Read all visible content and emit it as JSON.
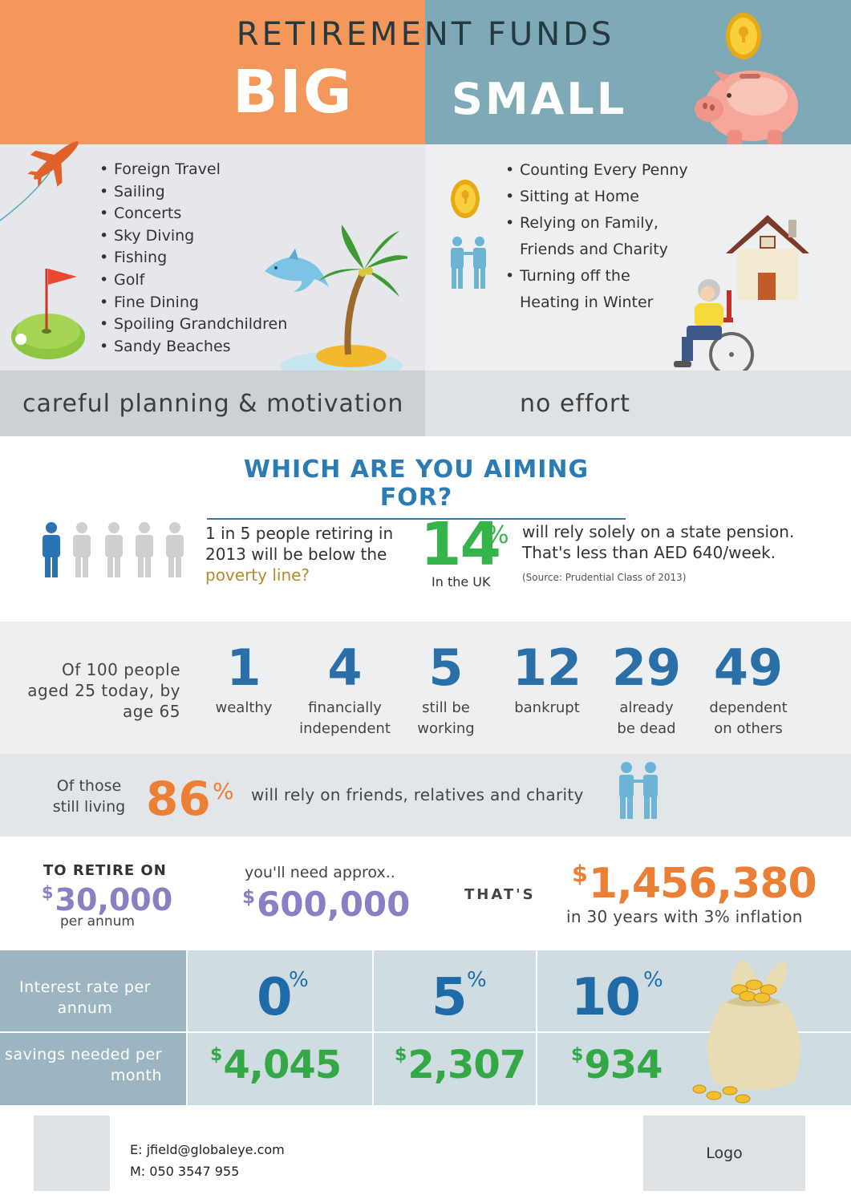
{
  "header": {
    "title": "RETIREMENT FUNDS",
    "big": "BIG",
    "small": "SMALL"
  },
  "big_list": [
    "Foreign Travel",
    "Sailing",
    "Concerts",
    "Sky Diving",
    "Fishing",
    "Golf",
    "Fine Dining",
    "Spoiling Grandchildren",
    "Sandy Beaches"
  ],
  "small_list": [
    "Counting Every Penny",
    "Sitting at Home",
    "Relying on Family,",
    "Friends and Charity",
    "Turning off the",
    "Heating in Winter"
  ],
  "bands": {
    "big": "careful planning & motivation",
    "small": "no effort"
  },
  "aiming": {
    "title": "WHICH ARE YOU AIMING FOR?",
    "poverty_pre": "1 in 5 people retiring in 2013 will be below the ",
    "poverty_highlight": "poverty line?",
    "pct": "14",
    "pct_sign": "%",
    "region": "In the UK",
    "pension": "will rely solely on a state pension. That's less than AED 640/week.",
    "source": "(Source: Prudential Class of 2013)"
  },
  "stats": {
    "intro": "Of 100 people aged 25 today, by age 65",
    "items": [
      {
        "num": "1",
        "label": "wealthy"
      },
      {
        "num": "4",
        "label": "financially\nindependent"
      },
      {
        "num": "5",
        "label": "still be\nworking"
      },
      {
        "num": "12",
        "label": "bankrupt"
      },
      {
        "num": "29",
        "label": "already\nbe dead"
      },
      {
        "num": "49",
        "label": "dependent\non others"
      }
    ]
  },
  "living": {
    "label": "Of those still living",
    "pct": "86",
    "pct_sign": "%",
    "text": "will rely on friends, relatives and charity"
  },
  "retire": {
    "label": "TO RETIRE ON",
    "currency": "$",
    "value": "30,000",
    "unit": "per annum",
    "need_label": "you'll need approx..",
    "need_value": "600,000",
    "thats": "THAT'S",
    "future_value": "1,456,380",
    "inflation": "in 30 years with 3% inflation"
  },
  "table": {
    "rate_label": "Interest rate per annum",
    "savings_label": "savings needed per month",
    "columns": [
      {
        "rate": "0",
        "savings": "4,045"
      },
      {
        "rate": "5",
        "savings": "2,307"
      },
      {
        "rate": "10",
        "savings": "934"
      }
    ],
    "pct_sign": "%",
    "currency": "$"
  },
  "footer": {
    "email": "E: jfield@globaleye.com",
    "phone": "M: 050 3547 955",
    "logo": "Logo"
  },
  "colors": {
    "orange": "#f4975a",
    "steel_blue": "#7eaab7",
    "blue": "#2b7bb5",
    "green": "#35b44a",
    "purple": "#8a7fc3",
    "accent_orange": "#ec7f36"
  }
}
